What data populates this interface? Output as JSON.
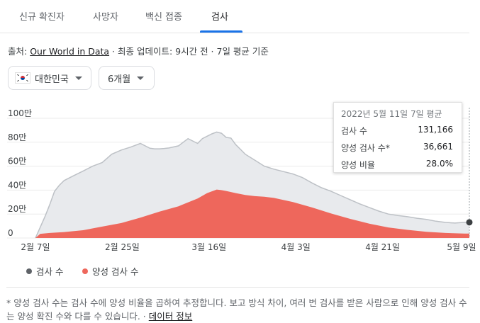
{
  "tabs": [
    {
      "label": "신규 확진자",
      "active": false
    },
    {
      "label": "사망자",
      "active": false
    },
    {
      "label": "백신 접종",
      "active": false
    },
    {
      "label": "검사",
      "active": true
    }
  ],
  "source": {
    "prefix": "출처: ",
    "link_text": "Our World in Data",
    "suffix": " · 최종 업데이트: 9시간 전 · 7일 평균 기준"
  },
  "filters": {
    "country": {
      "label": "대한민국",
      "icon": "south-korea-flag-icon"
    },
    "period": {
      "label": "6개월"
    }
  },
  "tooltip": {
    "title": "2022년 5월 11일 7일 평균",
    "rows": [
      {
        "label": "검사 수",
        "value": "131,166"
      },
      {
        "label": "양성 검사 수*",
        "value": "36,661"
      },
      {
        "label": "양성 비율",
        "value": "28.0%"
      }
    ]
  },
  "legend": [
    {
      "label": "검사 수",
      "color": "#5f6368"
    },
    {
      "label": "양성 검사 수",
      "color": "#ee675c"
    }
  ],
  "footnote": {
    "text": "* 양성 검사 수는 검사 수에 양성 비율을 곱하여 추정합니다. 보고 방식 차이, 여러 번 검사를 받은 사람으로 인해 양성 검사 수는 양성 확진 수와 다를 수 있습니다. · ",
    "link_text": "데이터 정보"
  },
  "colors": {
    "tests_fill": "#e8eaed",
    "tests_line": "#bdc1c6",
    "positive_fill": "#ee675c",
    "accent": "#1a73e8"
  },
  "chart_data": {
    "type": "area",
    "x_labels": [
      "2월 7일",
      "2월 25일",
      "3월 16일",
      "4월 3일",
      "4월 21일",
      "5월 9일"
    ],
    "y_ticks": [
      0,
      200000,
      400000,
      600000,
      800000,
      1000000
    ],
    "y_tick_labels": [
      "0",
      "20만",
      "40만",
      "60만",
      "80만",
      "100만"
    ],
    "ylim": [
      0,
      1000000
    ],
    "x_range_days": [
      0,
      91
    ],
    "grid": true,
    "legend_position": "bottom-left",
    "series": [
      {
        "name": "검사 수",
        "x": [
          0,
          2,
          3,
          4,
          5,
          6,
          8,
          10,
          12,
          14,
          16,
          18,
          20,
          22,
          24,
          25,
          26,
          27,
          28,
          30,
          32,
          34,
          35,
          36,
          37,
          38,
          39,
          40,
          41,
          42,
          43,
          44,
          46,
          48,
          50,
          52,
          54,
          56,
          58,
          60,
          62,
          64,
          66,
          68,
          70,
          72,
          74,
          76,
          78,
          80,
          82,
          84,
          86,
          88,
          90,
          91
        ],
        "y": [
          0,
          180000,
          280000,
          390000,
          440000,
          480000,
          520000,
          560000,
          600000,
          630000,
          700000,
          735000,
          760000,
          790000,
          750000,
          745000,
          745000,
          748000,
          752000,
          770000,
          830000,
          790000,
          830000,
          850000,
          870000,
          885000,
          875000,
          840000,
          835000,
          780000,
          740000,
          700000,
          650000,
          600000,
          575000,
          555000,
          535000,
          505000,
          460000,
          420000,
          390000,
          355000,
          320000,
          285000,
          255000,
          225000,
          200000,
          188000,
          178000,
          165000,
          155000,
          140000,
          130000,
          125000,
          131000,
          131166
        ]
      },
      {
        "name": "양성 검사 수",
        "x": [
          0,
          1,
          3,
          6,
          10,
          14,
          18,
          22,
          26,
          30,
          34,
          36,
          38,
          39,
          40,
          42,
          44,
          46,
          48,
          50,
          54,
          58,
          62,
          66,
          70,
          74,
          78,
          82,
          86,
          90,
          91
        ],
        "y": [
          0,
          35000,
          42000,
          50000,
          65000,
          95000,
          125000,
          170000,
          220000,
          265000,
          330000,
          375000,
          405000,
          400000,
          393000,
          375000,
          360000,
          350000,
          345000,
          335000,
          300000,
          255000,
          205000,
          160000,
          120000,
          88000,
          68000,
          52000,
          42000,
          37000,
          36661
        ]
      }
    ]
  }
}
